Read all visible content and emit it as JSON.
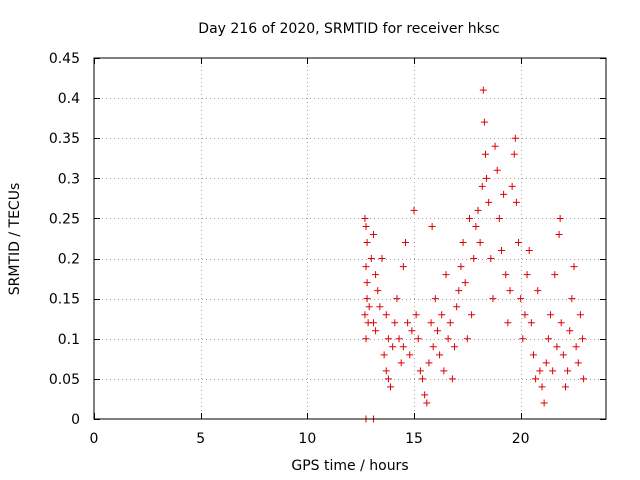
{
  "chart_data": {
    "type": "scatter",
    "title": "Day 216 of 2020, SRMTID for receiver hksc",
    "xlabel": "GPS time / hours",
    "ylabel": "SRMTID / TECUs",
    "xlim": [
      0,
      24
    ],
    "ylim": [
      0,
      0.45
    ],
    "xticks": [
      0,
      5,
      10,
      15,
      20
    ],
    "yticks": [
      0,
      0.05,
      0.1,
      0.15,
      0.2,
      0.25,
      0.3,
      0.35,
      0.4,
      0.45
    ],
    "xtick_labels": [
      "0",
      "5",
      "10",
      "15",
      "20"
    ],
    "ytick_labels": [
      "0",
      "0.05",
      "0.1",
      "0.15",
      "0.2",
      "0.25",
      "0.3",
      "0.35",
      "0.4",
      "0.45"
    ],
    "grid": true,
    "marker": "plus",
    "colors": {
      "series": "#e00000",
      "grid": "#a0a0a0",
      "axis": "#000000"
    },
    "series": [
      {
        "name": "SRMTID",
        "points": [
          [
            12.75,
            0.0
          ],
          [
            13.1,
            0.0
          ],
          [
            12.7,
            0.25
          ],
          [
            12.75,
            0.24
          ],
          [
            12.8,
            0.22
          ],
          [
            12.75,
            0.19
          ],
          [
            12.8,
            0.15
          ],
          [
            12.7,
            0.13
          ],
          [
            12.85,
            0.12
          ],
          [
            12.75,
            0.1
          ],
          [
            12.9,
            0.14
          ],
          [
            12.8,
            0.17
          ],
          [
            13.0,
            0.2
          ],
          [
            13.1,
            0.23
          ],
          [
            13.2,
            0.18
          ],
          [
            13.3,
            0.16
          ],
          [
            13.1,
            0.12
          ],
          [
            13.2,
            0.11
          ],
          [
            13.4,
            0.14
          ],
          [
            13.5,
            0.2
          ],
          [
            13.6,
            0.08
          ],
          [
            13.7,
            0.06
          ],
          [
            13.8,
            0.05
          ],
          [
            13.9,
            0.04
          ],
          [
            13.7,
            0.13
          ],
          [
            13.8,
            0.1
          ],
          [
            14.0,
            0.09
          ],
          [
            14.1,
            0.12
          ],
          [
            14.2,
            0.15
          ],
          [
            14.3,
            0.1
          ],
          [
            14.4,
            0.07
          ],
          [
            14.5,
            0.19
          ],
          [
            14.6,
            0.22
          ],
          [
            14.5,
            0.09
          ],
          [
            14.7,
            0.12
          ],
          [
            14.8,
            0.08
          ],
          [
            14.9,
            0.11
          ],
          [
            15.0,
            0.26
          ],
          [
            15.1,
            0.13
          ],
          [
            15.2,
            0.1
          ],
          [
            15.3,
            0.06
          ],
          [
            15.4,
            0.05
          ],
          [
            15.5,
            0.03
          ],
          [
            15.6,
            0.02
          ],
          [
            15.7,
            0.07
          ],
          [
            15.8,
            0.12
          ],
          [
            15.9,
            0.09
          ],
          [
            15.85,
            0.24
          ],
          [
            16.0,
            0.15
          ],
          [
            16.1,
            0.11
          ],
          [
            16.2,
            0.08
          ],
          [
            16.3,
            0.13
          ],
          [
            16.4,
            0.06
          ],
          [
            16.5,
            0.18
          ],
          [
            16.6,
            0.1
          ],
          [
            16.7,
            0.12
          ],
          [
            16.8,
            0.05
          ],
          [
            16.9,
            0.09
          ],
          [
            17.0,
            0.14
          ],
          [
            17.1,
            0.16
          ],
          [
            17.2,
            0.19
          ],
          [
            17.3,
            0.22
          ],
          [
            17.4,
            0.17
          ],
          [
            17.5,
            0.1
          ],
          [
            17.6,
            0.25
          ],
          [
            17.7,
            0.13
          ],
          [
            17.8,
            0.2
          ],
          [
            17.9,
            0.24
          ],
          [
            18.0,
            0.26
          ],
          [
            18.1,
            0.22
          ],
          [
            18.2,
            0.29
          ],
          [
            18.25,
            0.41
          ],
          [
            18.3,
            0.37
          ],
          [
            18.35,
            0.33
          ],
          [
            18.4,
            0.3
          ],
          [
            18.5,
            0.27
          ],
          [
            18.6,
            0.2
          ],
          [
            18.7,
            0.15
          ],
          [
            18.8,
            0.34
          ],
          [
            18.9,
            0.31
          ],
          [
            19.0,
            0.25
          ],
          [
            19.1,
            0.21
          ],
          [
            19.2,
            0.28
          ],
          [
            19.3,
            0.18
          ],
          [
            19.4,
            0.12
          ],
          [
            19.5,
            0.16
          ],
          [
            19.6,
            0.29
          ],
          [
            19.7,
            0.33
          ],
          [
            19.75,
            0.35
          ],
          [
            19.8,
            0.27
          ],
          [
            19.9,
            0.22
          ],
          [
            20.0,
            0.15
          ],
          [
            20.1,
            0.1
          ],
          [
            20.2,
            0.13
          ],
          [
            20.3,
            0.18
          ],
          [
            20.4,
            0.21
          ],
          [
            20.5,
            0.12
          ],
          [
            20.6,
            0.08
          ],
          [
            20.7,
            0.05
          ],
          [
            20.8,
            0.16
          ],
          [
            20.9,
            0.06
          ],
          [
            21.0,
            0.04
          ],
          [
            21.1,
            0.02
          ],
          [
            21.2,
            0.07
          ],
          [
            21.3,
            0.1
          ],
          [
            21.4,
            0.13
          ],
          [
            21.5,
            0.06
          ],
          [
            21.6,
            0.18
          ],
          [
            21.7,
            0.09
          ],
          [
            21.8,
            0.23
          ],
          [
            21.85,
            0.25
          ],
          [
            21.9,
            0.12
          ],
          [
            22.0,
            0.08
          ],
          [
            22.1,
            0.04
          ],
          [
            22.2,
            0.06
          ],
          [
            22.3,
            0.11
          ],
          [
            22.4,
            0.15
          ],
          [
            22.5,
            0.19
          ],
          [
            22.6,
            0.09
          ],
          [
            22.7,
            0.07
          ],
          [
            22.8,
            0.13
          ],
          [
            22.9,
            0.1
          ],
          [
            22.95,
            0.05
          ]
        ]
      }
    ]
  }
}
